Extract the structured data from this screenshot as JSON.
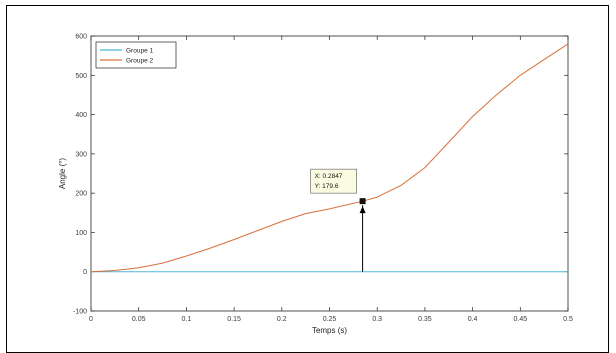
{
  "chart_data": {
    "type": "line",
    "title": "",
    "xlabel": "Temps (s)",
    "ylabel": "Angle (°)",
    "xlim": [
      0,
      0.5
    ],
    "ylim": [
      -100,
      600
    ],
    "xticks": [
      "0",
      "0.05",
      "0.1",
      "0.15",
      "0.2",
      "0.25",
      "0.3",
      "0.35",
      "0.4",
      "0.45",
      "0.5"
    ],
    "yticks": [
      "-100",
      "0",
      "100",
      "200",
      "300",
      "400",
      "500",
      "600"
    ],
    "grid": false,
    "legend_position": "top-left",
    "series": [
      {
        "name": "Groupe 1",
        "color": "#4db8d4",
        "x": [
          0,
          0.05,
          0.1,
          0.15,
          0.2,
          0.25,
          0.3,
          0.35,
          0.4,
          0.45,
          0.5
        ],
        "y": [
          0,
          0,
          0,
          0,
          0,
          0,
          0,
          0,
          0,
          0,
          0
        ]
      },
      {
        "name": "Groupe 2",
        "color": "#d9703a",
        "x": [
          0,
          0.025,
          0.05,
          0.075,
          0.1,
          0.125,
          0.15,
          0.175,
          0.2,
          0.225,
          0.25,
          0.2847,
          0.3,
          0.325,
          0.35,
          0.375,
          0.4,
          0.425,
          0.45,
          0.475,
          0.5
        ],
        "y": [
          0,
          3,
          10,
          22,
          40,
          60,
          82,
          105,
          128,
          148,
          160,
          179.6,
          190,
          220,
          265,
          330,
          395,
          450,
          500,
          540,
          580
        ]
      }
    ],
    "datatip": {
      "x_label": "X: 0.2847",
      "y_label": "Y: 179.6",
      "x": 0.2847,
      "y": 179.6
    }
  }
}
